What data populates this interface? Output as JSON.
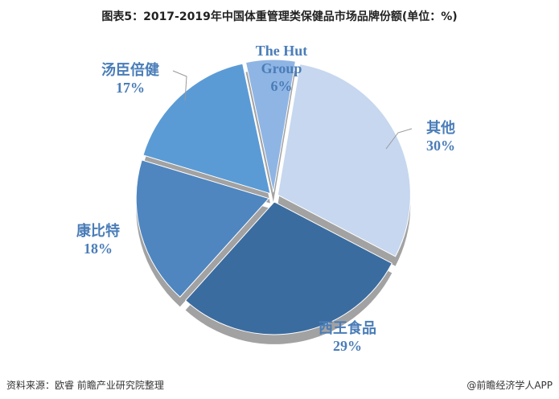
{
  "title": "图表5：2017-2019年中国体重管理类保健品市场品牌份额(单位：%)",
  "source": "资料来源：欧睿 前瞻产业研究院整理",
  "credit": "@前瞻经济学人APP",
  "chart_data": {
    "type": "pie",
    "categories": [
      "The Hut Group",
      "其他",
      "西王食品",
      "康比特",
      "汤臣倍健"
    ],
    "values": [
      6,
      30,
      29,
      18,
      17
    ],
    "value_labels": [
      "6%",
      "30%",
      "29%",
      "18%",
      "17%"
    ],
    "colors": [
      "#8fb5e4",
      "#c6d7ef",
      "#3b6c9f",
      "#4f86c0",
      "#5b9bd5"
    ]
  }
}
